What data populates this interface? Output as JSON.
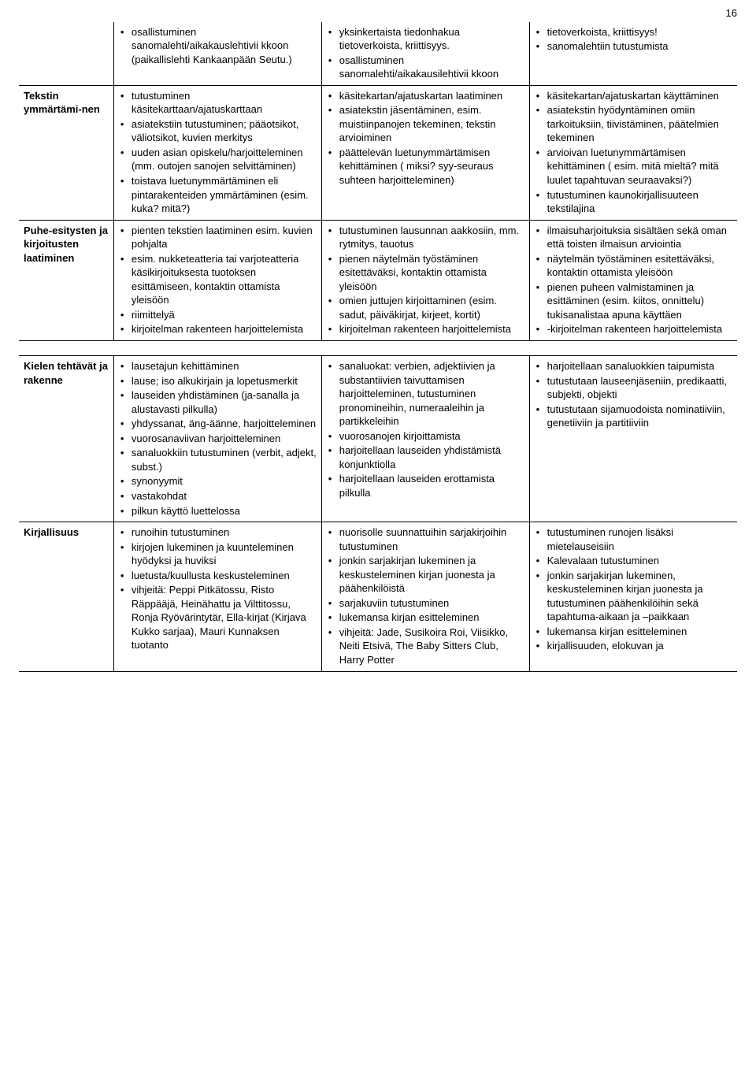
{
  "page_number": "16",
  "table1": {
    "rows": [
      {
        "head": "",
        "c1": [
          "osallistuminen sanomalehti/aikakauslehtivii kkoon (paikallislehti Kankaanpään Seutu.)"
        ],
        "c2": [
          "yksinkertaista tiedonhakua tietoverkoista, kriittisyys.",
          "osallistuminen sanomalehti/aikakausilehtivii kkoon"
        ],
        "c3": [
          "tietoverkoista, kriittisyys!",
          "sanomalehtiin tutustumista"
        ]
      },
      {
        "head": "Tekstin ymmärtämi-nen",
        "c1": [
          "tutustuminen käsitekarttaan/ajatuskarttaan",
          "asiatekstiin tutustuminen; pääotsikot, väliotsikot, kuvien merkitys",
          "uuden asian opiskelu/harjoitteleminen (mm. outojen sanojen selvittäminen)",
          "toistava luetunymmärtäminen eli pintarakenteiden ymmärtäminen (esim. kuka? mitä?)"
        ],
        "c2": [
          "käsitekartan/ajatuskartan laatiminen",
          "asiatekstin jäsentäminen, esim. muistiinpanojen tekeminen, tekstin arvioiminen",
          "päättelevän luetunymmärtämisen kehittäminen ( miksi? syy-seuraus suhteen harjoitteleminen)"
        ],
        "c3": [
          "käsitekartan/ajatuskartan käyttäminen",
          "asiatekstin hyödyntäminen omiin tarkoituksiin, tiivistäminen, päätelmien tekeminen",
          "arvioivan luetunymmärtämisen kehittäminen ( esim. mitä mieltä? mitä luulet tapahtuvan seuraavaksi?)",
          "tutustuminen kaunokirjallisuuteen tekstilajina"
        ]
      },
      {
        "head": "Puhe-esitysten ja kirjoitusten laatiminen",
        "c1": [
          "pienten tekstien laatiminen esim. kuvien pohjalta",
          "esim. nukketeatteria tai varjoteatteria käsikirjoituksesta tuotoksen esittämiseen, kontaktin ottamista yleisöön",
          "riimittelyä",
          "kirjoitelman rakenteen harjoittelemista"
        ],
        "c2": [
          "tutustuminen lausunnan aakkosiin, mm. rytmitys, tauotus",
          "pienen näytelmän työstäminen esitettäväksi, kontaktin ottamista yleisöön",
          "omien juttujen kirjoittaminen (esim. sadut, päiväkirjat, kirjeet, kortit)",
          "kirjoitelman rakenteen harjoittelemista"
        ],
        "c3": [
          "ilmaisuharjoituksia sisältäen sekä oman että toisten ilmaisun arviointia",
          "näytelmän työstäminen esitettäväksi, kontaktin ottamista yleisöön",
          "pienen puheen valmistaminen ja esittäminen (esim. kiitos, onnittelu) tukisanalistaa apuna käyttäen",
          "-kirjoitelman rakenteen harjoittelemista"
        ]
      }
    ]
  },
  "table2": {
    "rows": [
      {
        "head": "Kielen tehtävät ja rakenne",
        "c1": [
          "lausetajun kehittäminen",
          "lause; iso alkukirjain ja lopetusmerkit",
          "lauseiden yhdistäminen (ja-sanalla ja alustavasti pilkulla)",
          "yhdyssanat, äng-äänne, harjoitteleminen",
          "vuorosanaviivan harjoitteleminen",
          "sanaluokkiin tutustuminen (verbit, adjekt, subst.)",
          "synonyymit",
          "vastakohdat",
          "pilkun käyttö luettelossa"
        ],
        "c2": [
          "sanaluokat: verbien, adjektiivien ja substantiivien taivuttamisen harjoitteleminen, tutustuminen pronomineihin, numeraaleihin ja partikkeleihin",
          "vuorosanojen kirjoittamista",
          "harjoitellaan lauseiden yhdistämistä konjunktiolla",
          "harjoitellaan lauseiden erottamista pilkulla"
        ],
        "c3": [
          "harjoitellaan sanaluokkien taipumista",
          "tutustutaan lauseenjäseniin, predikaatti, subjekti, objekti",
          "tutustutaan sijamuodoista nominatiiviin, genetiiviin ja partitiiviin"
        ]
      },
      {
        "head": "Kirjallisuus",
        "c1": [
          "runoihin tutustuminen",
          "kirjojen lukeminen ja kuunteleminen hyödyksi ja huviksi",
          "luetusta/kuullusta keskusteleminen",
          "vihjeitä: Peppi Pitkätossu, Risto Räppääjä, Heinähattu ja Vilttitossu, Ronja Ryövärintytär, Ella-kirjat (Kirjava Kukko sarjaa), Mauri Kunnaksen tuotanto"
        ],
        "c2": [
          "nuorisolle suunnattuihin sarjakirjoihin tutustuminen",
          "jonkin sarjakirjan lukeminen ja keskusteleminen kirjan juonesta ja päähenkilöistä",
          "sarjakuviin tutustuminen",
          "lukemansa kirjan esitteleminen",
          "vihjeitä: Jade, Susikoira Roi, Viisikko, Neiti Etsivä, The Baby Sitters Club, Harry Potter"
        ],
        "c3": [
          "tutustuminen runojen lisäksi mietelauseisiin",
          "Kalevalaan tutustuminen",
          "jonkin sarjakirjan lukeminen, keskusteleminen kirjan juonesta ja  tutustuminen päähenkilöihin sekä tapahtuma-aikaan ja –paikkaan",
          "lukemansa kirjan esitteleminen",
          "kirjallisuuden, elokuvan ja"
        ]
      }
    ]
  }
}
